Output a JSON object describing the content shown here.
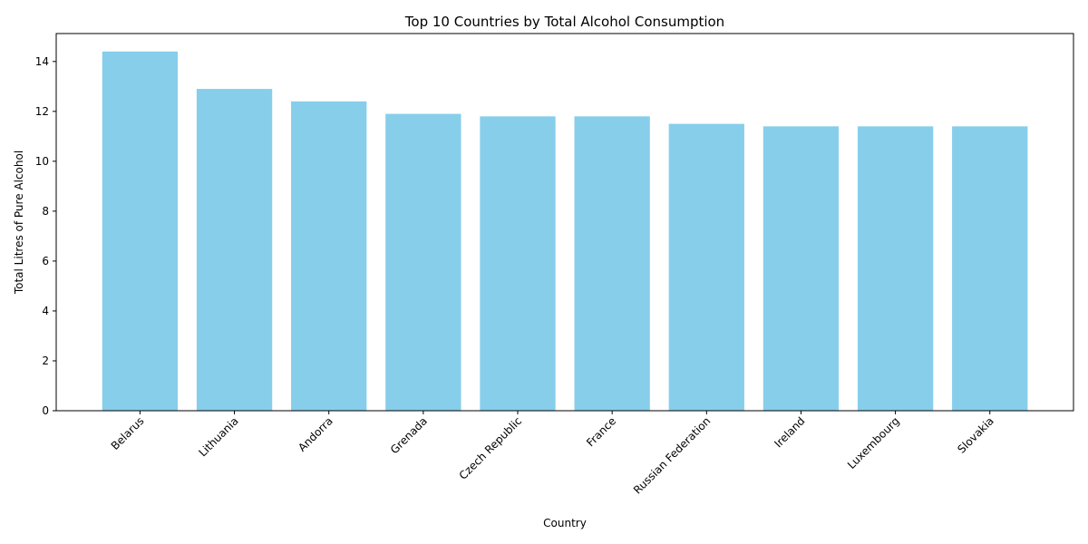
{
  "chart_data": {
    "type": "bar",
    "title": "Top 10 Countries by Total Alcohol Consumption",
    "xlabel": "Country",
    "ylabel": "Total Litres of Pure Alcohol",
    "categories": [
      "Belarus",
      "Lithuania",
      "Andorra",
      "Grenada",
      "Czech Republic",
      "France",
      "Russian Federation",
      "Ireland",
      "Luxembourg",
      "Slovakia"
    ],
    "values": [
      14.4,
      12.9,
      12.4,
      11.9,
      11.8,
      11.8,
      11.5,
      11.4,
      11.4,
      11.4
    ],
    "ylim": [
      0,
      15.12
    ],
    "yticks": [
      0,
      2,
      4,
      6,
      8,
      10,
      12,
      14
    ],
    "grid": false,
    "legend": "none",
    "bar_color": "#87ceeb",
    "xtick_rotation_deg": 45
  }
}
